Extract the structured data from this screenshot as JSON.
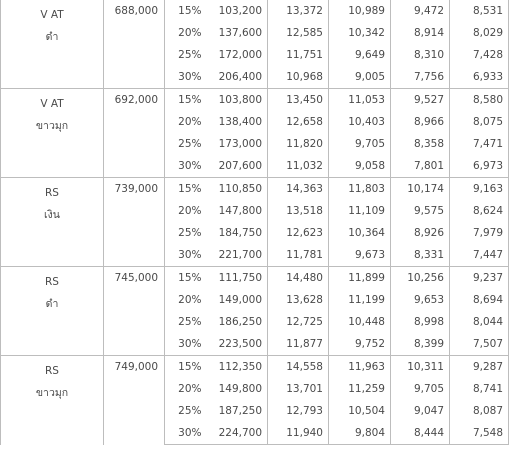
{
  "rows": [
    {
      "model": "V AT",
      "color": "ดำ",
      "price": "688,000",
      "lines": [
        {
          "down": "15%",
          "vals": [
            "103,200",
            "13,372",
            "10,989",
            "9,472",
            "8,531"
          ]
        },
        {
          "down": "20%",
          "vals": [
            "137,600",
            "12,585",
            "10,342",
            "8,914",
            "8,029"
          ]
        },
        {
          "down": "25%",
          "vals": [
            "172,000",
            "11,751",
            "9,649",
            "8,310",
            "7,428"
          ]
        },
        {
          "down": "30%",
          "vals": [
            "206,400",
            "10,968",
            "9,005",
            "7,756",
            "6,933"
          ]
        }
      ]
    },
    {
      "model": "V AT",
      "color": "ขาวมุก",
      "price": "692,000",
      "lines": [
        {
          "down": "15%",
          "vals": [
            "103,800",
            "13,450",
            "11,053",
            "9,527",
            "8,580"
          ]
        },
        {
          "down": "20%",
          "vals": [
            "138,400",
            "12,658",
            "10,403",
            "8,966",
            "8,075"
          ]
        },
        {
          "down": "25%",
          "vals": [
            "173,000",
            "11,820",
            "9,705",
            "8,358",
            "7,471"
          ]
        },
        {
          "down": "30%",
          "vals": [
            "207,600",
            "11,032",
            "9,058",
            "7,801",
            "6,973"
          ]
        }
      ]
    },
    {
      "model": "RS",
      "color": "เงิน",
      "price": "739,000",
      "lines": [
        {
          "down": "15%",
          "vals": [
            "110,850",
            "14,363",
            "11,803",
            "10,174",
            "9,163"
          ]
        },
        {
          "down": "20%",
          "vals": [
            "147,800",
            "13,518",
            "11,109",
            "9,575",
            "8,624"
          ]
        },
        {
          "down": "25%",
          "vals": [
            "184,750",
            "12,623",
            "10,364",
            "8,926",
            "7,979"
          ]
        },
        {
          "down": "30%",
          "vals": [
            "221,700",
            "11,781",
            "9,673",
            "8,331",
            "7,447"
          ]
        }
      ]
    },
    {
      "model": "RS",
      "color": "ดำ",
      "price": "745,000",
      "lines": [
        {
          "down": "15%",
          "vals": [
            "111,750",
            "14,480",
            "11,899",
            "10,256",
            "9,237"
          ]
        },
        {
          "down": "20%",
          "vals": [
            "149,000",
            "13,628",
            "11,199",
            "9,653",
            "8,694"
          ]
        },
        {
          "down": "25%",
          "vals": [
            "186,250",
            "12,725",
            "10,448",
            "8,998",
            "8,044"
          ]
        },
        {
          "down": "30%",
          "vals": [
            "223,500",
            "11,877",
            "9,752",
            "8,399",
            "7,507"
          ]
        }
      ]
    },
    {
      "model": "RS",
      "color": "ขาวมุก",
      "price": "749,000",
      "lines": [
        {
          "down": "15%",
          "vals": [
            "112,350",
            "14,558",
            "11,963",
            "10,311",
            "9,287"
          ]
        },
        {
          "down": "20%",
          "vals": [
            "149,800",
            "13,701",
            "11,259",
            "9,705",
            "8,741"
          ]
        },
        {
          "down": "25%",
          "vals": [
            "187,250",
            "12,793",
            "10,504",
            "9,047",
            "8,087"
          ]
        },
        {
          "down": "30%",
          "vals": [
            "224,700",
            "11,940",
            "9,804",
            "8,444",
            "7,548"
          ]
        }
      ]
    }
  ]
}
